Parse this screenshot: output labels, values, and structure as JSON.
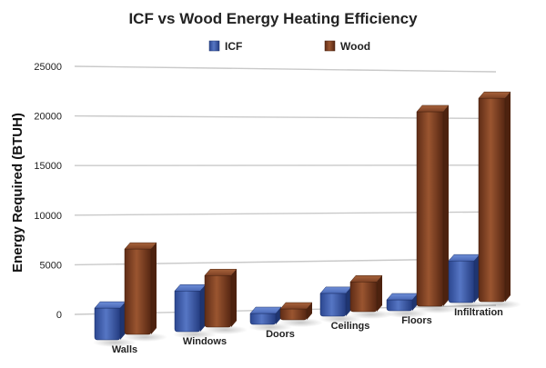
{
  "chart_data": {
    "type": "bar",
    "title": "ICF vs Wood Energy Heating Efficiency",
    "xlabel": "",
    "ylabel": "Energy Required (BTUH)",
    "ylim": [
      0,
      25000
    ],
    "yticks": [
      0,
      5000,
      10000,
      15000,
      20000,
      25000
    ],
    "ytick_labels": [
      "0",
      "5000",
      "10000",
      "15000",
      "20000",
      "25000"
    ],
    "grid": true,
    "legend_position": "top",
    "categories": [
      "Walls",
      "Windows",
      "Doors",
      "Ceilings",
      "Floors",
      "Infiltration"
    ],
    "series": [
      {
        "name": "ICF",
        "color": "#3b5aa8",
        "values": [
          3200,
          4100,
          900,
          2300,
          1000,
          4200
        ]
      },
      {
        "name": "Wood",
        "color": "#7a3e22",
        "values": [
          8600,
          5200,
          800,
          3000,
          19600,
          20500
        ]
      }
    ]
  }
}
